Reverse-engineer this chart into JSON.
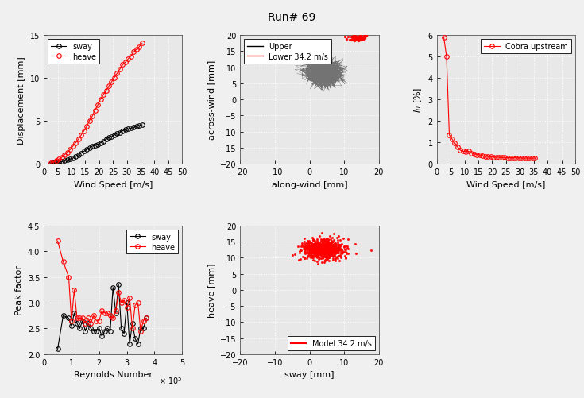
{
  "title": "Run# 69",
  "ax1": {
    "xlabel": "Wind Speed [m/s]",
    "ylabel": "Displacement [mm]",
    "xlim": [
      0,
      50
    ],
    "ylim": [
      0,
      15
    ],
    "xticks": [
      0,
      5,
      10,
      15,
      20,
      25,
      30,
      35,
      40,
      45,
      50
    ],
    "yticks": [
      0,
      5,
      10,
      15
    ],
    "sway_x": [
      2.5,
      3.5,
      4.5,
      5.5,
      6.5,
      7.5,
      8.5,
      9.5,
      10.5,
      11.5,
      12.5,
      13.5,
      14.5,
      15.5,
      16.5,
      17.5,
      18.5,
      19.5,
      20.5,
      21.5,
      22.5,
      23.5,
      24.5,
      25.5,
      26.5,
      27.5,
      28.5,
      29.5,
      30.5,
      31.5,
      32.5,
      33.5,
      34.5,
      35.5
    ],
    "sway_y": [
      0.05,
      0.08,
      0.12,
      0.18,
      0.25,
      0.35,
      0.45,
      0.55,
      0.65,
      0.85,
      1.05,
      1.25,
      1.45,
      1.65,
      1.85,
      2.05,
      2.15,
      2.25,
      2.45,
      2.65,
      2.85,
      3.05,
      3.15,
      3.35,
      3.55,
      3.65,
      3.85,
      3.95,
      4.05,
      4.15,
      4.25,
      4.35,
      4.45,
      4.55
    ],
    "heave_x": [
      2.5,
      3.5,
      4.5,
      5.5,
      6.5,
      7.5,
      8.5,
      9.5,
      10.5,
      11.5,
      12.5,
      13.5,
      14.5,
      15.5,
      16.5,
      17.5,
      18.5,
      19.5,
      20.5,
      21.5,
      22.5,
      23.5,
      24.5,
      25.5,
      26.5,
      27.5,
      28.5,
      29.5,
      30.5,
      31.5,
      32.5,
      33.5,
      34.5,
      35.5
    ],
    "heave_y": [
      0.1,
      0.2,
      0.35,
      0.55,
      0.75,
      1.05,
      1.35,
      1.65,
      2.05,
      2.45,
      2.85,
      3.35,
      3.85,
      4.35,
      5.05,
      5.55,
      6.25,
      6.85,
      7.55,
      8.05,
      8.55,
      9.05,
      9.55,
      10.05,
      10.55,
      11.05,
      11.55,
      11.85,
      12.25,
      12.55,
      13.05,
      13.35,
      13.65,
      14.05
    ],
    "sway_color": "black",
    "heave_color": "red",
    "legend_labels": [
      "sway",
      "heave"
    ]
  },
  "ax2": {
    "xlabel": "along-wind [mm]",
    "ylabel": "across-wind [mm]",
    "xlim": [
      -20,
      20
    ],
    "ylim": [
      -20,
      20
    ],
    "xticks": [
      -20,
      -10,
      0,
      10,
      20
    ],
    "yticks": [
      -20,
      -15,
      -10,
      -5,
      0,
      5,
      10,
      15,
      20
    ],
    "wind_speed": "34.2 m/s",
    "upper_cloud_x_mean": 4.0,
    "upper_cloud_y_mean": 8.5,
    "upper_cloud_x_std": 2.5,
    "upper_cloud_y_std": 2.0,
    "lower_cloud_x_mean": 14.0,
    "lower_cloud_y_mean": 19.2,
    "lower_cloud_x_std": 1.2,
    "lower_cloud_y_std": 0.4,
    "n_upper": 1500,
    "n_lower": 80,
    "legend_labels": [
      "Upper",
      "Lower 34.2 m/s"
    ]
  },
  "ax3": {
    "xlabel": "Wind Speed [m/s]",
    "ylabel": "I_u [%]",
    "xlim": [
      0,
      50
    ],
    "ylim": [
      0,
      6
    ],
    "xticks": [
      0,
      5,
      10,
      15,
      20,
      25,
      30,
      35,
      40,
      45,
      50
    ],
    "yticks": [
      0,
      1,
      2,
      3,
      4,
      5,
      6
    ],
    "x": [
      2.5,
      3.5,
      4.5,
      5.5,
      6.5,
      7.5,
      8.5,
      9.5,
      10.5,
      11.5,
      12.5,
      13.5,
      14.5,
      15.5,
      16.5,
      17.5,
      18.5,
      19.5,
      20.5,
      21.5,
      22.5,
      23.5,
      24.5,
      25.5,
      26.5,
      27.5,
      28.5,
      29.5,
      30.5,
      31.5,
      32.5,
      33.5,
      34.5,
      35.5
    ],
    "y": [
      5.9,
      5.0,
      1.35,
      1.15,
      0.97,
      0.78,
      0.63,
      0.58,
      0.57,
      0.58,
      0.5,
      0.46,
      0.43,
      0.42,
      0.37,
      0.35,
      0.33,
      0.32,
      0.31,
      0.3,
      0.3,
      0.29,
      0.29,
      0.28,
      0.28,
      0.28,
      0.27,
      0.27,
      0.27,
      0.26,
      0.26,
      0.26,
      0.26,
      0.26
    ],
    "color": "red",
    "legend_label": "Cobra upstream"
  },
  "ax4": {
    "xlabel": "Reynolds Number",
    "ylabel": "Peak factor",
    "xlim": [
      0,
      500000
    ],
    "ylim": [
      2,
      4.5
    ],
    "xticks": [
      0,
      100000,
      200000,
      300000,
      400000,
      500000
    ],
    "yticks": [
      2.0,
      2.5,
      3.0,
      3.5,
      4.0,
      4.5
    ],
    "sway_re": [
      50000,
      70000,
      90000,
      100000,
      110000,
      120000,
      130000,
      140000,
      150000,
      160000,
      170000,
      180000,
      190000,
      200000,
      210000,
      220000,
      230000,
      240000,
      250000,
      260000,
      270000,
      280000,
      290000,
      300000,
      310000,
      320000,
      330000,
      340000,
      350000,
      360000,
      370000
    ],
    "sway_pf": [
      2.1,
      2.75,
      2.7,
      2.55,
      2.8,
      2.6,
      2.5,
      2.65,
      2.45,
      2.6,
      2.5,
      2.45,
      2.45,
      2.5,
      2.35,
      2.45,
      2.5,
      2.45,
      3.3,
      2.8,
      3.35,
      2.5,
      2.4,
      3.0,
      2.2,
      2.6,
      2.3,
      2.2,
      2.5,
      2.5,
      2.7
    ],
    "heave_re": [
      50000,
      70000,
      90000,
      100000,
      110000,
      120000,
      130000,
      140000,
      150000,
      160000,
      170000,
      180000,
      190000,
      200000,
      210000,
      220000,
      230000,
      240000,
      250000,
      260000,
      270000,
      280000,
      290000,
      300000,
      310000,
      320000,
      330000,
      340000,
      350000,
      360000,
      370000
    ],
    "heave_pf": [
      4.2,
      3.8,
      3.5,
      2.65,
      3.25,
      2.7,
      2.7,
      2.7,
      2.6,
      2.7,
      2.6,
      2.75,
      2.65,
      2.65,
      2.85,
      2.8,
      2.8,
      2.75,
      2.7,
      2.85,
      3.2,
      3.0,
      3.05,
      2.9,
      3.1,
      2.5,
      2.95,
      3.0,
      2.45,
      2.65,
      2.7
    ],
    "sway_color": "black",
    "heave_color": "red",
    "legend_labels": [
      "sway",
      "heave"
    ]
  },
  "ax5": {
    "xlabel": "sway [mm]",
    "ylabel": "heave [mm]",
    "xlim": [
      -20,
      20
    ],
    "ylim": [
      -20,
      20
    ],
    "xticks": [
      -20,
      -10,
      0,
      10,
      20
    ],
    "yticks": [
      -20,
      -15,
      -10,
      -5,
      0,
      5,
      10,
      15,
      20
    ],
    "wind_speed": "34.2 m/s",
    "cloud_x_mean": 4.0,
    "cloud_y_mean": 12.5,
    "cloud_x_std": 3.0,
    "cloud_y_std": 1.5,
    "n_points": 800,
    "legend_label": "Model 34.2 m/s",
    "color": "red"
  },
  "bg_color": "#f0f0f0",
  "ax_face_color": "#e8e8e8",
  "grid_color": "white",
  "tick_fontsize": 7,
  "label_fontsize": 8
}
